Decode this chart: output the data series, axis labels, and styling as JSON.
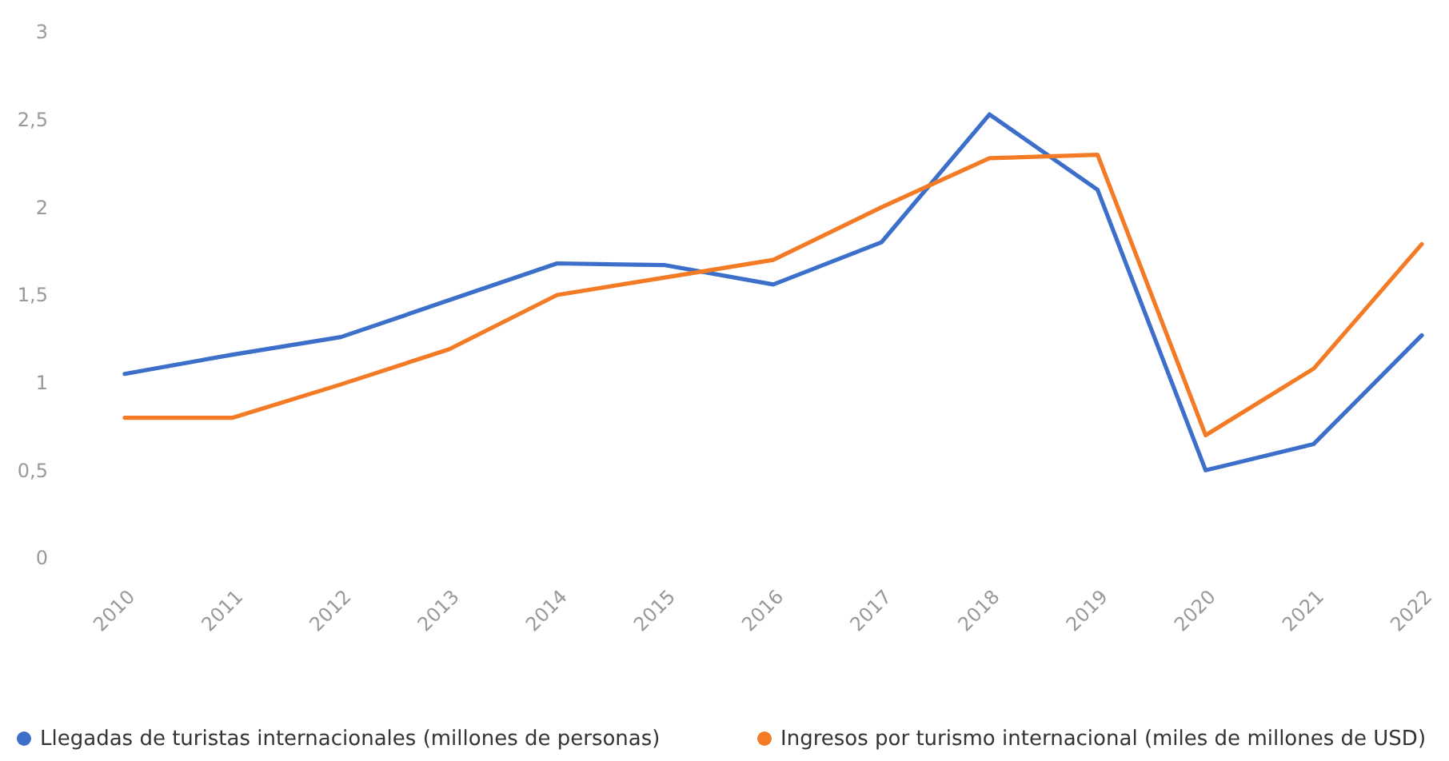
{
  "chart_data": {
    "type": "line",
    "categories": [
      "2010",
      "2011",
      "2012",
      "2013",
      "2014",
      "2015",
      "2016",
      "2017",
      "2018",
      "2019",
      "2020",
      "2021",
      "2022"
    ],
    "series": [
      {
        "name": "Llegadas de turistas internacionales (millones de personas)",
        "color": "#3b6fc9",
        "values": [
          1.05,
          1.16,
          1.26,
          1.47,
          1.68,
          1.67,
          1.56,
          1.8,
          2.53,
          2.1,
          0.5,
          0.65,
          1.27
        ]
      },
      {
        "name": "Ingresos por turismo internacional (miles de millones de USD)",
        "color": "#f47b25",
        "values": [
          0.8,
          0.8,
          0.99,
          1.19,
          1.5,
          1.6,
          1.7,
          2.0,
          2.28,
          2.3,
          0.7,
          1.08,
          1.79
        ]
      }
    ],
    "ylim": [
      0,
      3
    ],
    "yticks": [
      0,
      {
        "value": 0.5,
        "label": "0,5"
      },
      1,
      {
        "value": 1.5,
        "label": "1,5"
      },
      2,
      {
        "value": 2.5,
        "label": "2,5"
      },
      3
    ],
    "grid": false,
    "legend": "bottom",
    "marker": "none",
    "line_style": "solid"
  }
}
